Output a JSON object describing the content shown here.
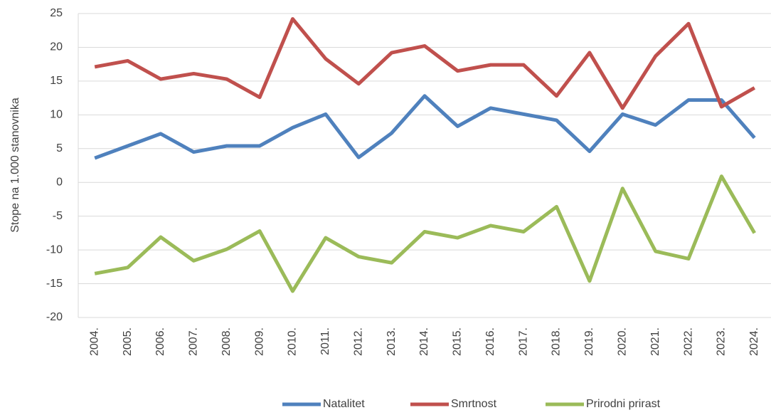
{
  "chart_data": {
    "type": "line",
    "y_label": "Stope na 1.000 stanovnika",
    "categories": [
      "2004.",
      "2005.",
      "2006.",
      "2007.",
      "2008.",
      "2009.",
      "2010.",
      "2011.",
      "2012.",
      "2013.",
      "2014.",
      "2015.",
      "2016.",
      "2017.",
      "2018.",
      "2019.",
      "2020.",
      "2021.",
      "2022.",
      "2023.",
      "2024."
    ],
    "series": [
      {
        "name": "Natalitet",
        "color": "#4f81bd",
        "values": [
          3.6,
          5.4,
          7.2,
          4.5,
          5.4,
          5.4,
          8.1,
          10.1,
          3.7,
          7.3,
          12.8,
          8.3,
          11.0,
          10.1,
          9.2,
          4.6,
          10.1,
          8.5,
          12.2,
          12.2,
          6.6
        ]
      },
      {
        "name": "Smrtnost",
        "color": "#c0504d",
        "values": [
          17.1,
          18.0,
          15.3,
          16.1,
          15.3,
          12.6,
          24.2,
          18.3,
          14.6,
          19.2,
          20.2,
          16.5,
          17.4,
          17.4,
          12.8,
          19.2,
          11.0,
          18.7,
          23.5,
          11.2,
          14.0
        ]
      },
      {
        "name": "Prirodni prirast",
        "color": "#9bbb59",
        "values": [
          -13.5,
          -12.6,
          -8.1,
          -11.6,
          -9.9,
          -7.2,
          -16.1,
          -8.2,
          -11.0,
          -11.9,
          -7.3,
          -8.2,
          -6.4,
          -7.3,
          -3.6,
          -14.6,
          -0.9,
          -10.2,
          -11.3,
          0.9,
          -7.5
        ]
      }
    ],
    "ylim": [
      -20,
      25
    ],
    "yticks": [
      -20,
      -15,
      -10,
      -5,
      0,
      5,
      10,
      15,
      20,
      25
    ],
    "grid": true,
    "legend": "bottom"
  }
}
